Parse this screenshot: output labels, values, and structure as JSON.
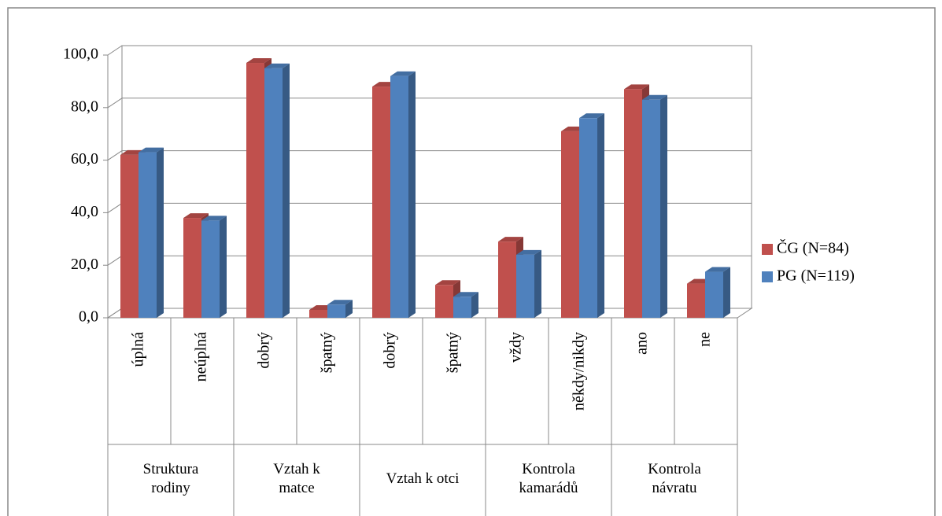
{
  "chart_data": {
    "type": "bar3d",
    "categories": [
      "úplná",
      "neúplná",
      "dobrý",
      "špatný",
      "dobrý",
      "špatný",
      "vždy",
      "někdy/nikdy",
      "ano",
      "ne"
    ],
    "category_groups": [
      "Struktura rodiny",
      "Vztah k matce",
      "Vztah k otci",
      "Kontrola kamarádů",
      "Kontrola návratu"
    ],
    "series": [
      {
        "name": "ČG (N=84)",
        "color": "#c0504d",
        "values": [
          62,
          38,
          97,
          3,
          88,
          12.5,
          29,
          71,
          87,
          13
        ]
      },
      {
        "name": "PG (N=119)",
        "color": "#4f81bd",
        "values": [
          63,
          37,
          95,
          5,
          92,
          8,
          24,
          76,
          83,
          17.5
        ]
      }
    ],
    "ylim": [
      0,
      100
    ],
    "yticks": [
      {
        "value": 0,
        "label": "0,0"
      },
      {
        "value": 20,
        "label": "20,0"
      },
      {
        "value": 40,
        "label": "40,0"
      },
      {
        "value": 60,
        "label": "60,0"
      },
      {
        "value": 80,
        "label": "80,0"
      },
      {
        "value": 100,
        "label": "100,0"
      }
    ],
    "grid": true,
    "legend": "right"
  }
}
